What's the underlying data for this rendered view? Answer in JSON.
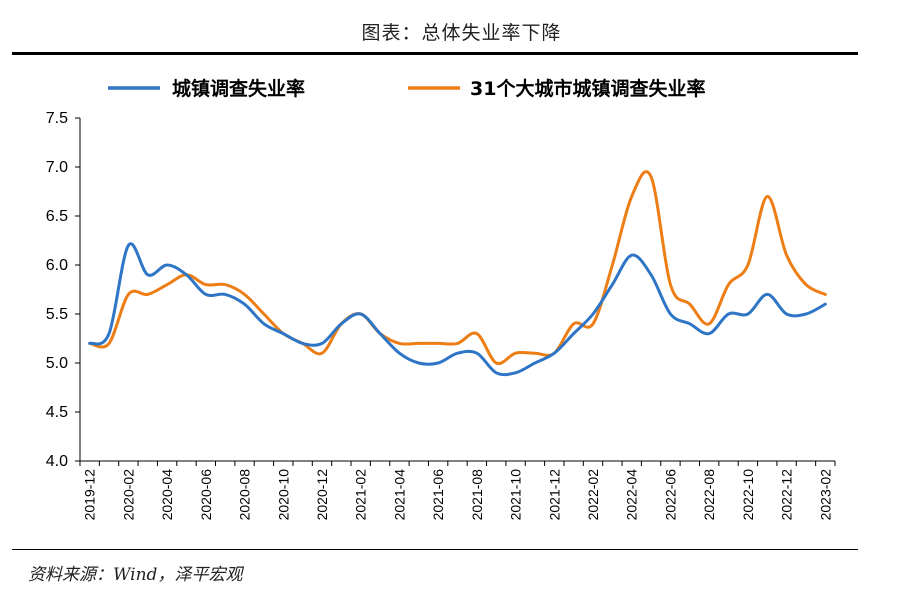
{
  "figure": {
    "title": "图表：总体失业率下降",
    "source": "资料来源：Wind，泽平宏观"
  },
  "chart_data": {
    "type": "line",
    "title": "图表：总体失业率下降",
    "xlabel": "",
    "ylabel": "",
    "ylim": [
      4.0,
      7.5
    ],
    "yticks": [
      "4.0",
      "4.5",
      "5.0",
      "5.5",
      "6.0",
      "6.5",
      "7.0",
      "7.5"
    ],
    "grid": false,
    "legend_position": "top",
    "x": [
      "2019-12",
      "2020-01",
      "2020-02",
      "2020-03",
      "2020-04",
      "2020-05",
      "2020-06",
      "2020-07",
      "2020-08",
      "2020-09",
      "2020-10",
      "2020-11",
      "2020-12",
      "2021-01",
      "2021-02",
      "2021-03",
      "2021-04",
      "2021-05",
      "2021-06",
      "2021-07",
      "2021-08",
      "2021-09",
      "2021-10",
      "2021-11",
      "2021-12",
      "2022-01",
      "2022-02",
      "2022-03",
      "2022-04",
      "2022-05",
      "2022-06",
      "2022-07",
      "2022-08",
      "2022-09",
      "2022-10",
      "2022-11",
      "2022-12",
      "2023-01",
      "2023-02"
    ],
    "xtick_labels": [
      "2019-12",
      "2020-02",
      "2020-04",
      "2020-06",
      "2020-08",
      "2020-10",
      "2020-12",
      "2021-02",
      "2021-04",
      "2021-06",
      "2021-08",
      "2021-10",
      "2021-12",
      "2022-02",
      "2022-04",
      "2022-06",
      "2022-08",
      "2022-10",
      "2022-12",
      "2023-02"
    ],
    "series": [
      {
        "name": "城镇调查失业率",
        "color": "#2e75c6",
        "values": [
          5.2,
          5.3,
          6.2,
          5.9,
          6.0,
          5.9,
          5.7,
          5.7,
          5.6,
          5.4,
          5.3,
          5.2,
          5.2,
          5.4,
          5.5,
          5.3,
          5.1,
          5.0,
          5.0,
          5.1,
          5.1,
          4.9,
          4.9,
          5.0,
          5.1,
          5.3,
          5.5,
          5.8,
          6.1,
          5.9,
          5.5,
          5.4,
          5.3,
          5.5,
          5.5,
          5.7,
          5.5,
          5.5,
          5.6
        ]
      },
      {
        "name": "31个大城市城镇调查失业率",
        "color": "#ed7d15",
        "values": [
          5.2,
          5.2,
          5.7,
          5.7,
          5.8,
          5.9,
          5.8,
          5.8,
          5.7,
          5.5,
          5.3,
          5.2,
          5.1,
          5.4,
          5.5,
          5.3,
          5.2,
          5.2,
          5.2,
          5.2,
          5.3,
          5.0,
          5.1,
          5.1,
          5.1,
          5.4,
          5.4,
          6.0,
          6.7,
          6.9,
          5.8,
          5.6,
          5.4,
          5.8,
          6.0,
          6.7,
          6.1,
          5.8,
          5.7
        ]
      }
    ]
  }
}
